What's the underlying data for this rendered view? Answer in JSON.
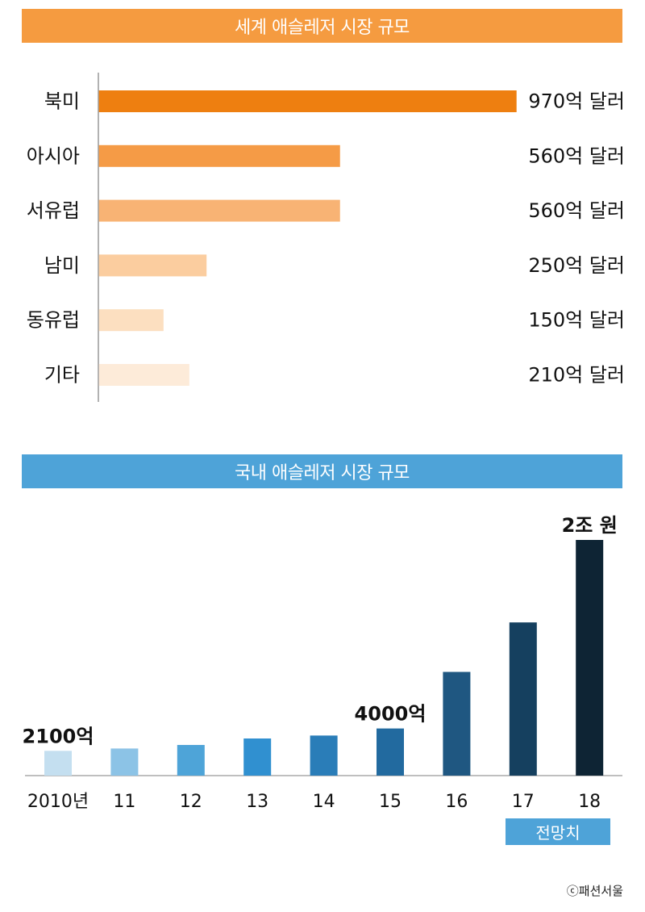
{
  "chart_data": [
    {
      "type": "bar",
      "orientation": "horizontal",
      "title": "세계 애슬레저 시장 규모",
      "categories": [
        "북미",
        "아시아",
        "서유럽",
        "남미",
        "동유럽",
        "기타"
      ],
      "values": [
        970,
        560,
        560,
        250,
        150,
        210
      ],
      "value_labels": [
        "970억 달러",
        "560억 달러",
        "560억 달러",
        "250억 달러",
        "150억 달러",
        "210억 달러"
      ],
      "unit": "억 달러",
      "xlim": [
        0,
        970
      ],
      "colors": [
        "#ee7f10",
        "#f59b46",
        "#f8b374",
        "#fbcd9f",
        "#fcdfc0",
        "#fdebd9"
      ],
      "title_color": "#f59b40",
      "grid": false
    },
    {
      "type": "bar",
      "orientation": "vertical",
      "title": "국내 애슬레저 시장 규모",
      "categories": [
        "2010년",
        "11",
        "12",
        "13",
        "14",
        "15",
        "16",
        "17",
        "18"
      ],
      "values": [
        2100,
        2300,
        2600,
        3150,
        3400,
        4000,
        8800,
        13000,
        20000
      ],
      "unit": "억 원",
      "annotations": [
        {
          "category_index": 0,
          "text": "2100억"
        },
        {
          "category_index": 5,
          "text": "4000억"
        },
        {
          "category_index": 8,
          "text": "2조 원"
        }
      ],
      "ylim": [
        0,
        20000
      ],
      "colors": [
        "#c4dff0",
        "#8cc3e6",
        "#4ea4d8",
        "#3090d0",
        "#2a7db8",
        "#226a9f",
        "#1f5781",
        "#15405f",
        "#0e2434"
      ],
      "title_color": "#4ea3d8",
      "forecast_label": "전망치",
      "forecast_color": "#4ea3d8",
      "grid": false
    }
  ],
  "credit": "ⓒ패션서울"
}
